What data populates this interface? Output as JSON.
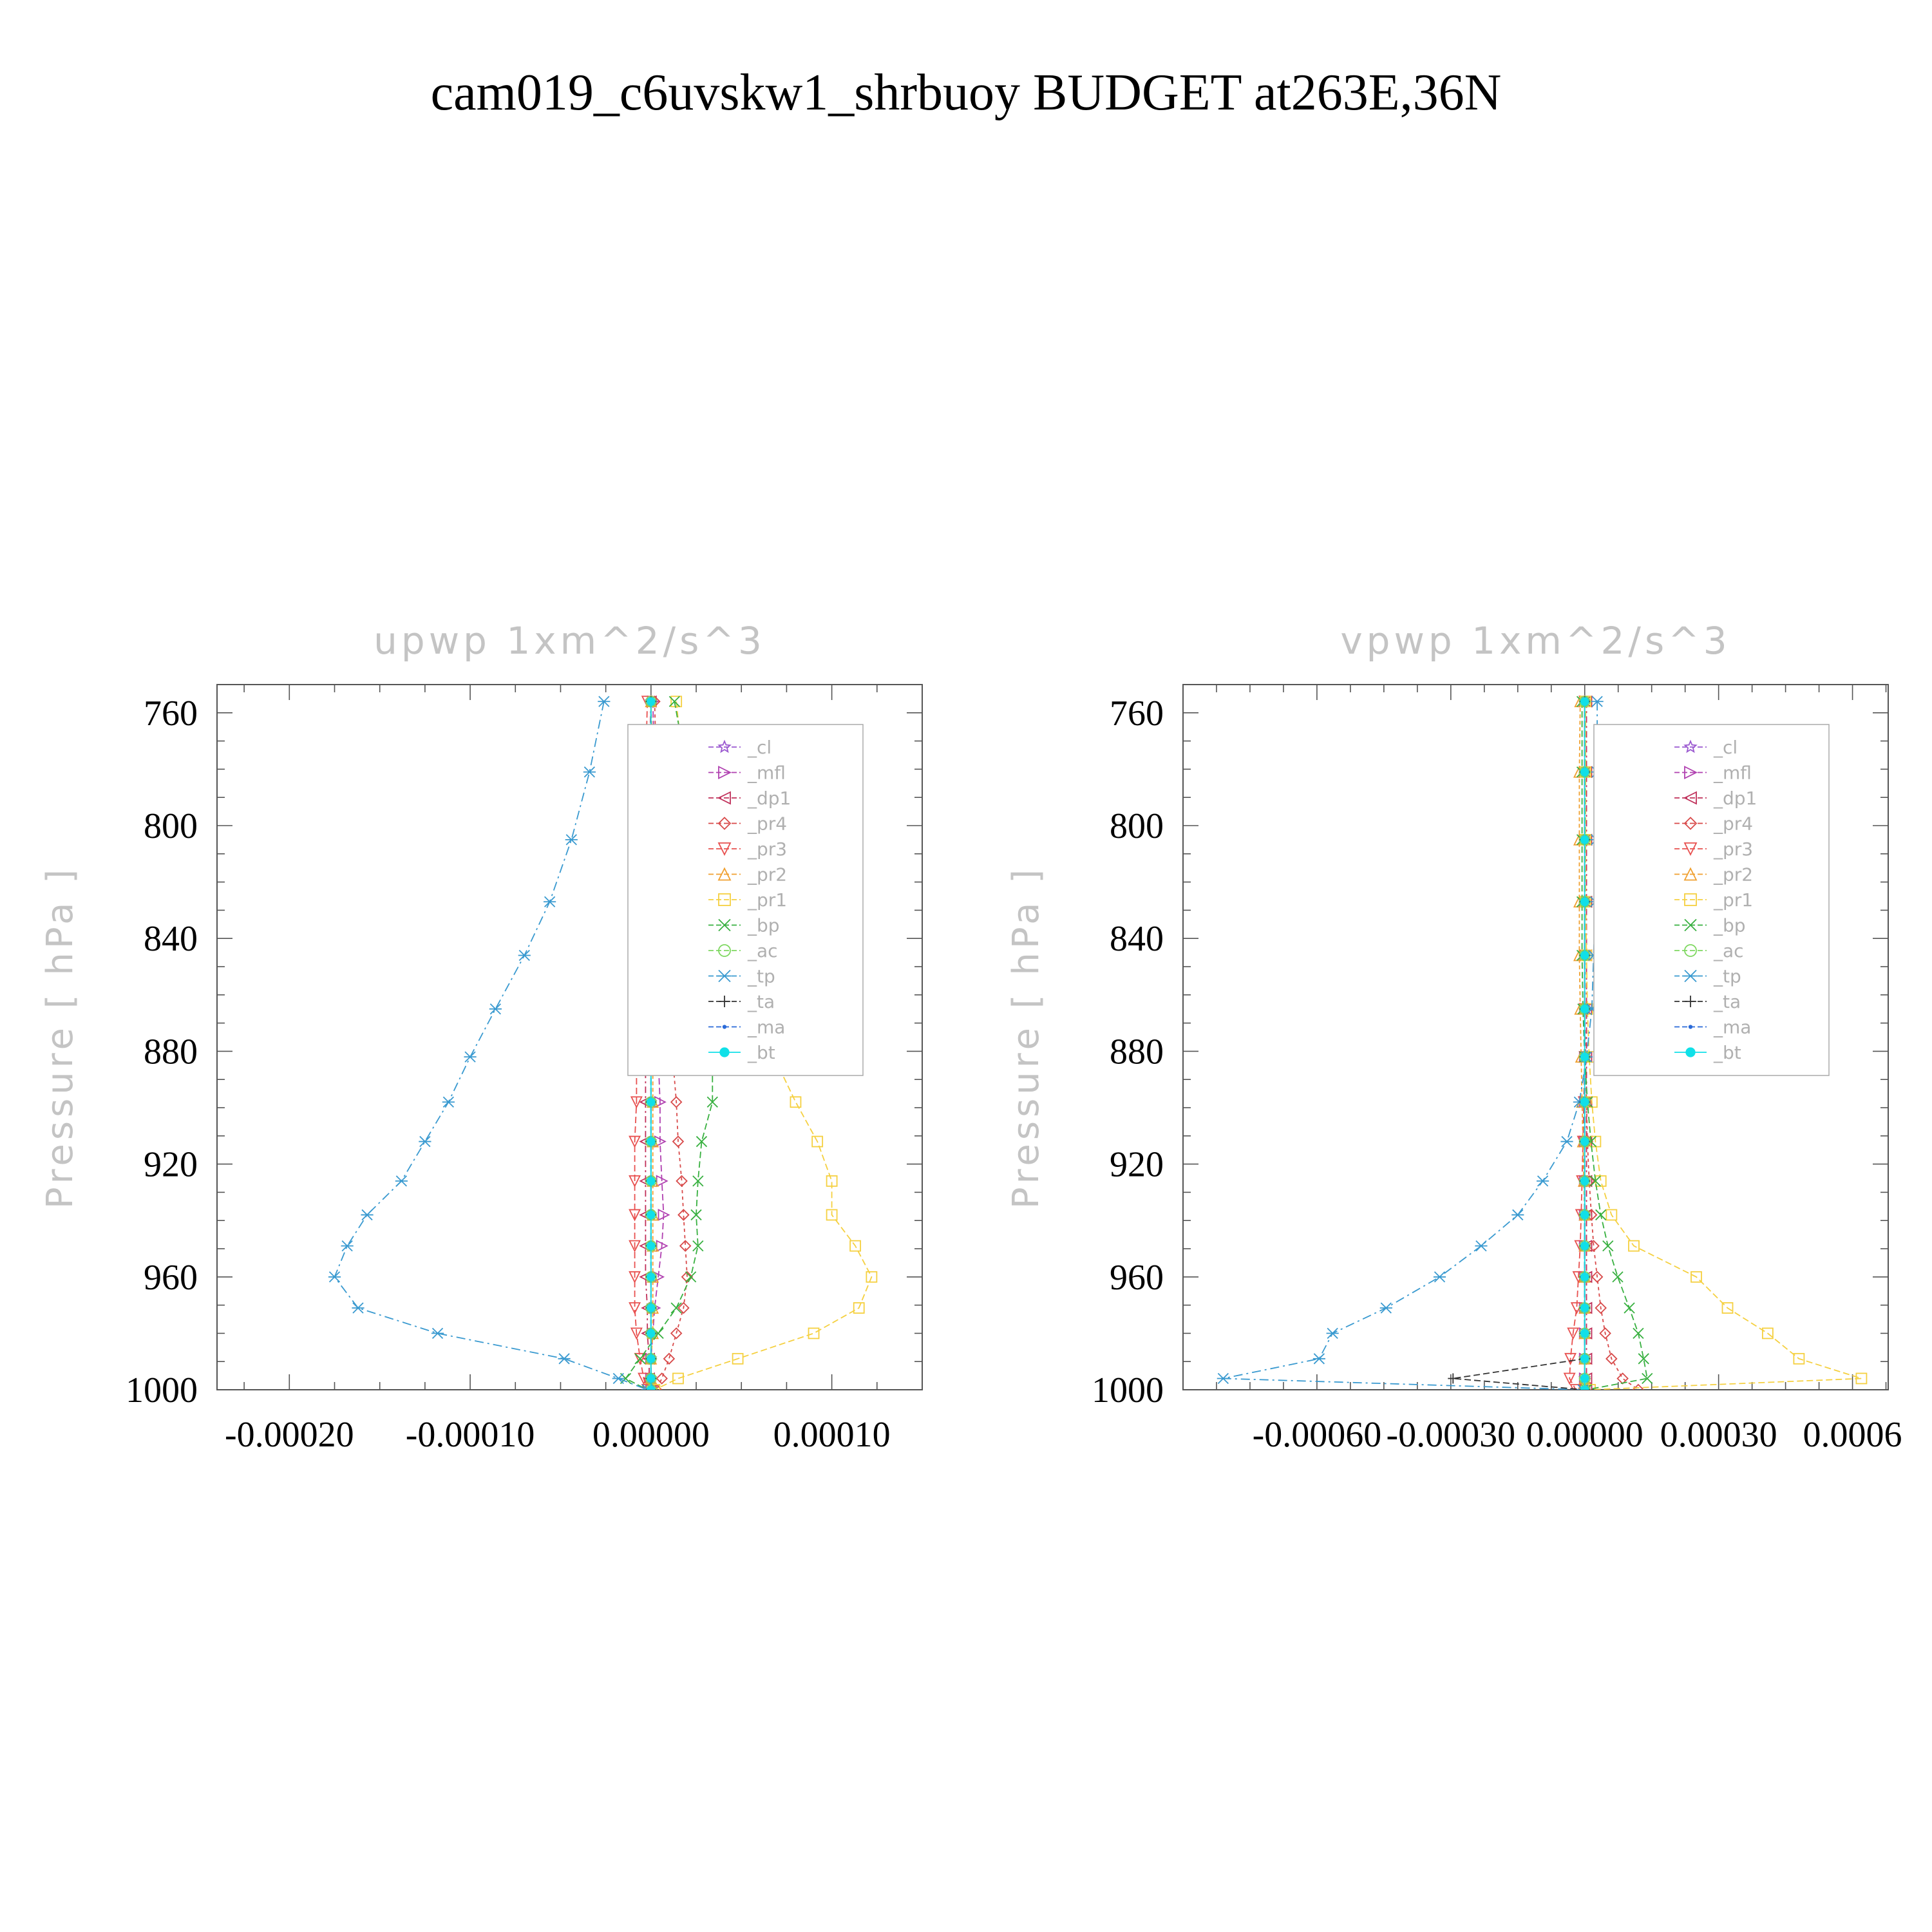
{
  "title": "cam019_c6uvskw1_shrbuoy  BUDGET at263E,36N",
  "legend_items": [
    {
      "label": "_cl",
      "color": "#9b59d0",
      "marker": "star",
      "dash": "6,4"
    },
    {
      "label": "_mfl",
      "color": "#b040b0",
      "marker": "tri-right",
      "dash": "10,5"
    },
    {
      "label": "_dp1",
      "color": "#c0305a",
      "marker": "tri-left",
      "dash": "10,5,3,5"
    },
    {
      "label": "_pr4",
      "color": "#d84a4a",
      "marker": "diamond",
      "dash": "5,5"
    },
    {
      "label": "_pr3",
      "color": "#e8504f",
      "marker": "tri-down",
      "dash": "10,5"
    },
    {
      "label": "_pr2",
      "color": "#f0a030",
      "marker": "tri-up",
      "dash": "6,4"
    },
    {
      "label": "_pr1",
      "color": "#f5d040",
      "marker": "square",
      "dash": "10,5"
    },
    {
      "label": "_bp",
      "color": "#38b040",
      "marker": "x",
      "dash": "10,5"
    },
    {
      "label": "_ac",
      "color": "#7ed860",
      "marker": "circle",
      "dash": "6,4"
    },
    {
      "label": "_tp",
      "color": "#3a9ad0",
      "marker": "asterisk",
      "dash": "14,6,3,6"
    },
    {
      "label": "_ta",
      "color": "#333333",
      "marker": "plus",
      "dash": "10,5"
    },
    {
      "label": "_ma",
      "color": "#2a6ad8",
      "marker": "dot",
      "dash": "10,5"
    },
    {
      "label": "_bt",
      "color": "#10e0e8",
      "marker": "filled-circle",
      "dash": ""
    }
  ],
  "chart_data": [
    {
      "type": "line",
      "title": "upwp   1xm^2/s^3",
      "ylabel": "Pressure  [ hPa ]",
      "ylim": [
        1000,
        750
      ],
      "yticks": [
        760,
        800,
        840,
        880,
        920,
        960,
        1000
      ],
      "xlim": [
        -0.00024,
        0.00015
      ],
      "xticks": [
        -0.0002,
        -0.0001,
        0.0,
        0.0001
      ],
      "xtick_labels": [
        "-0.00020",
        "-0.00010",
        "0.00000",
        "0.00010"
      ],
      "pressure": [
        756,
        781,
        805,
        827,
        846,
        865,
        882,
        898,
        912,
        926,
        938,
        949,
        960,
        971,
        980,
        989,
        996,
        1000
      ],
      "series": [
        {
          "name": "_cl",
          "values": [
            0,
            0,
            0,
            0,
            0,
            0,
            0,
            0,
            0,
            0,
            0,
            0,
            0,
            0,
            0,
            0,
            0,
            0
          ]
        },
        {
          "name": "_mfl",
          "values": [
            1e-06,
            2e-06,
            2e-06,
            3e-06,
            3e-06,
            4e-06,
            4e-06,
            5e-06,
            5e-06,
            6e-06,
            7e-06,
            6e-06,
            4e-06,
            2e-06,
            1e-06,
            0,
            0,
            0
          ]
        },
        {
          "name": "_dp1",
          "values": [
            0,
            -1e-06,
            -1e-06,
            -2e-06,
            -2e-06,
            -2e-06,
            -3e-06,
            -3e-06,
            -3e-06,
            -3e-06,
            -3e-06,
            -3e-06,
            -3e-06,
            -2e-06,
            -2e-06,
            -1e-06,
            -1e-06,
            0
          ]
        },
        {
          "name": "_pr4",
          "values": [
            2e-06,
            3e-06,
            4e-06,
            6e-06,
            8e-06,
            1e-05,
            1.2e-05,
            1.4e-05,
            1.5e-05,
            1.7e-05,
            1.8e-05,
            1.9e-05,
            2e-05,
            1.8e-05,
            1.4e-05,
            1e-05,
            6e-06,
            3e-06
          ]
        },
        {
          "name": "_pr3",
          "values": [
            -2e-06,
            -3e-06,
            -4e-06,
            -5e-06,
            -6e-06,
            -7e-06,
            -8e-06,
            -8e-06,
            -9e-06,
            -9e-06,
            -9e-06,
            -9e-06,
            -9e-06,
            -9e-06,
            -8e-06,
            -6e-06,
            -4e-06,
            -2e-06
          ]
        },
        {
          "name": "_pr2",
          "values": [
            0,
            1e-06,
            1e-06,
            1e-06,
            1e-06,
            1e-06,
            1e-06,
            1e-06,
            1e-06,
            1e-06,
            1e-06,
            1e-06,
            1e-06,
            1e-06,
            1e-06,
            0,
            0,
            0
          ]
        },
        {
          "name": "_pr1",
          "values": [
            1.4e-05,
            1.8e-05,
            2.2e-05,
            2.8e-05,
            3.8e-05,
            5.2e-05,
            6.8e-05,
            8e-05,
            9.2e-05,
            0.0001,
            0.0001,
            0.000113,
            0.000122,
            0.000115,
            9e-05,
            4.8e-05,
            1.5e-05,
            2e-06
          ]
        },
        {
          "name": "_bp",
          "values": [
            1.3e-05,
            2e-05,
            2.4e-05,
            2.6e-05,
            2.8e-05,
            3.2e-05,
            3.4e-05,
            3.4e-05,
            2.8e-05,
            2.6e-05,
            2.5e-05,
            2.6e-05,
            2.2e-05,
            1.4e-05,
            4e-06,
            -6e-06,
            -1.4e-05,
            -2e-06
          ]
        },
        {
          "name": "_ac",
          "values": [
            0,
            0,
            0,
            0,
            0,
            0,
            0,
            0,
            0,
            0,
            0,
            0,
            0,
            0,
            0,
            0,
            0,
            0
          ]
        },
        {
          "name": "_tp",
          "values": [
            -2.6e-05,
            -3.4e-05,
            -4.4e-05,
            -5.6e-05,
            -7e-05,
            -8.6e-05,
            -0.0001,
            -0.000112,
            -0.000125,
            -0.000138,
            -0.000157,
            -0.000168,
            -0.000175,
            -0.000162,
            -0.000118,
            -4.8e-05,
            -1.8e-05,
            -2e-06
          ]
        },
        {
          "name": "_ta",
          "values": [
            0,
            0,
            0,
            0,
            0,
            0,
            0,
            0,
            0,
            0,
            0,
            0,
            0,
            0,
            0,
            0,
            0,
            0
          ]
        },
        {
          "name": "_ma",
          "values": [
            0,
            0,
            0,
            0,
            0,
            0,
            0,
            0,
            0,
            0,
            0,
            0,
            0,
            0,
            0,
            0,
            0,
            0
          ]
        },
        {
          "name": "_bt",
          "values": [
            0,
            0,
            0,
            0,
            0,
            0,
            0,
            0,
            0,
            0,
            0,
            0,
            0,
            0,
            0,
            0,
            0,
            0
          ]
        }
      ]
    },
    {
      "type": "line",
      "title": "vpwp   1xm^2/s^3",
      "ylabel": "Pressure  [ hPa ]",
      "ylim": [
        1000,
        750
      ],
      "yticks": [
        760,
        800,
        840,
        880,
        920,
        960,
        1000
      ],
      "xlim": [
        -0.0009,
        0.00068
      ],
      "xticks": [
        -0.0006,
        -0.0003,
        0.0,
        0.0003,
        0.0006
      ],
      "xtick_labels": [
        "-0.00060",
        "-0.00030",
        "0.00000",
        "0.00030",
        "0.0006"
      ],
      "pressure": [
        756,
        781,
        805,
        827,
        846,
        865,
        882,
        898,
        912,
        926,
        938,
        949,
        960,
        971,
        980,
        989,
        996,
        1000
      ],
      "series": [
        {
          "name": "_cl",
          "values": [
            0,
            0,
            0,
            0,
            0,
            0,
            0,
            0,
            0,
            0,
            0,
            0,
            0,
            0,
            0,
            0,
            0,
            0
          ]
        },
        {
          "name": "_mfl",
          "values": [
            0,
            0,
            0,
            0,
            0,
            0,
            0,
            0,
            0,
            0,
            0,
            0,
            0,
            0,
            0,
            0,
            0,
            0
          ]
        },
        {
          "name": "_dp1",
          "values": [
            4e-06,
            4e-06,
            4e-06,
            4e-06,
            4e-06,
            4e-06,
            4e-06,
            4e-06,
            4e-06,
            4e-06,
            4e-06,
            4e-06,
            4e-06,
            4e-06,
            4e-06,
            4e-06,
            4e-06,
            4e-06
          ]
        },
        {
          "name": "_pr4",
          "values": [
            0,
            0,
            0,
            0,
            0,
            0,
            2e-06,
            4e-06,
            6e-06,
            1e-05,
            1.5e-05,
            2e-05,
            2.8e-05,
            3.6e-05,
            4.6e-05,
            6e-05,
            8.5e-05,
            0.00012
          ]
        },
        {
          "name": "_pr3",
          "values": [
            0,
            0,
            0,
            0,
            0,
            0,
            0,
            -2e-06,
            -4e-06,
            -6e-06,
            -8e-06,
            -1e-05,
            -1.4e-05,
            -1.8e-05,
            -2.6e-05,
            -3.2e-05,
            -3.4e-05,
            -2e-05
          ]
        },
        {
          "name": "_pr2",
          "values": [
            -1e-05,
            -1.2e-05,
            -1.2e-05,
            -1.2e-05,
            -1.2e-05,
            -1e-05,
            -8e-06,
            -6e-06,
            -4e-06,
            -2e-06,
            0,
            0,
            0,
            0,
            0,
            0,
            0,
            0
          ]
        },
        {
          "name": "_pr1",
          "values": [
            2e-06,
            2e-06,
            2e-06,
            2e-06,
            4e-06,
            6e-06,
            1e-05,
            1.6e-05,
            2.4e-05,
            3.6e-05,
            6e-05,
            0.00011,
            0.00025,
            0.00032,
            0.00041,
            0.00048,
            0.00062,
            1.2e-05
          ]
        },
        {
          "name": "_bp",
          "values": [
            -6e-06,
            -6e-06,
            -6e-06,
            -6e-06,
            -6e-06,
            -4e-06,
            0,
            6e-06,
            1.4e-05,
            2.4e-05,
            3.6e-05,
            5.2e-05,
            7.4e-05,
            0.0001,
            0.00012,
            0.000132,
            0.00014,
            4e-06
          ]
        },
        {
          "name": "_ac",
          "values": [
            0,
            0,
            0,
            0,
            0,
            0,
            0,
            0,
            0,
            0,
            0,
            0,
            0,
            0,
            0,
            0,
            0,
            0
          ]
        },
        {
          "name": "_tp",
          "values": [
            2.8e-05,
            2.8e-05,
            2.6e-05,
            2.4e-05,
            2e-05,
            1.6e-05,
            4e-06,
            -1.2e-05,
            -4e-05,
            -9.4e-05,
            -0.00015,
            -0.000232,
            -0.000325,
            -0.000445,
            -0.000565,
            -0.000595,
            -0.00081,
            -4e-06
          ]
        },
        {
          "name": "_ta",
          "values": [
            0,
            0,
            0,
            0,
            0,
            0,
            0,
            0,
            0,
            0,
            0,
            0,
            0,
            0,
            0,
            0,
            -0.000295,
            0
          ]
        },
        {
          "name": "_ma",
          "values": [
            0,
            0,
            0,
            0,
            0,
            0,
            0,
            0,
            0,
            0,
            0,
            0,
            0,
            0,
            0,
            0,
            0,
            0
          ]
        },
        {
          "name": "_bt",
          "values": [
            0,
            0,
            0,
            0,
            0,
            0,
            0,
            0,
            0,
            0,
            0,
            0,
            0,
            0,
            0,
            0,
            0,
            0
          ]
        }
      ]
    }
  ]
}
